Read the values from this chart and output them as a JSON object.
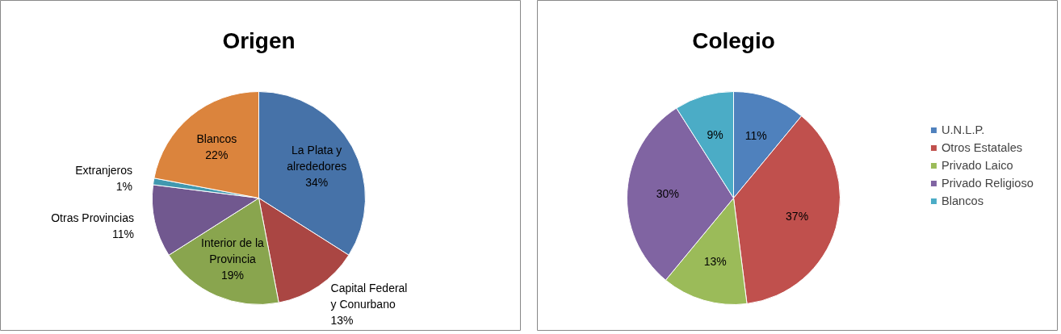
{
  "chart_data": [
    {
      "type": "pie",
      "title": "Origen",
      "categories": [
        "La Plata y alrededores",
        "Capital Federal y Conurbano",
        "Interior de la Provincia",
        "Otras Provincias",
        "Extranjeros",
        "Blancos"
      ],
      "values": [
        34,
        13,
        19,
        11,
        1,
        22
      ],
      "value_labels": [
        "34%",
        "13%",
        "19%",
        "11%",
        "1%",
        "22%"
      ],
      "colors": [
        "#4672a8",
        "#aa4643",
        "#89a54e",
        "#71588f",
        "#4198af",
        "#db843d"
      ],
      "legend": false
    },
    {
      "type": "pie",
      "title": "Colegio",
      "categories": [
        "U.N.L.P.",
        "Otros Estatales",
        "Privado Laico",
        "Privado Religioso",
        "Blancos"
      ],
      "values": [
        11,
        37,
        13,
        30,
        9
      ],
      "value_labels": [
        "11%",
        "37%",
        "13%",
        "30%",
        "9%"
      ],
      "colors": [
        "#4f81bd",
        "#c0504d",
        "#9bbb59",
        "#8064a2",
        "#4bacc6"
      ],
      "legend": "right"
    }
  ]
}
